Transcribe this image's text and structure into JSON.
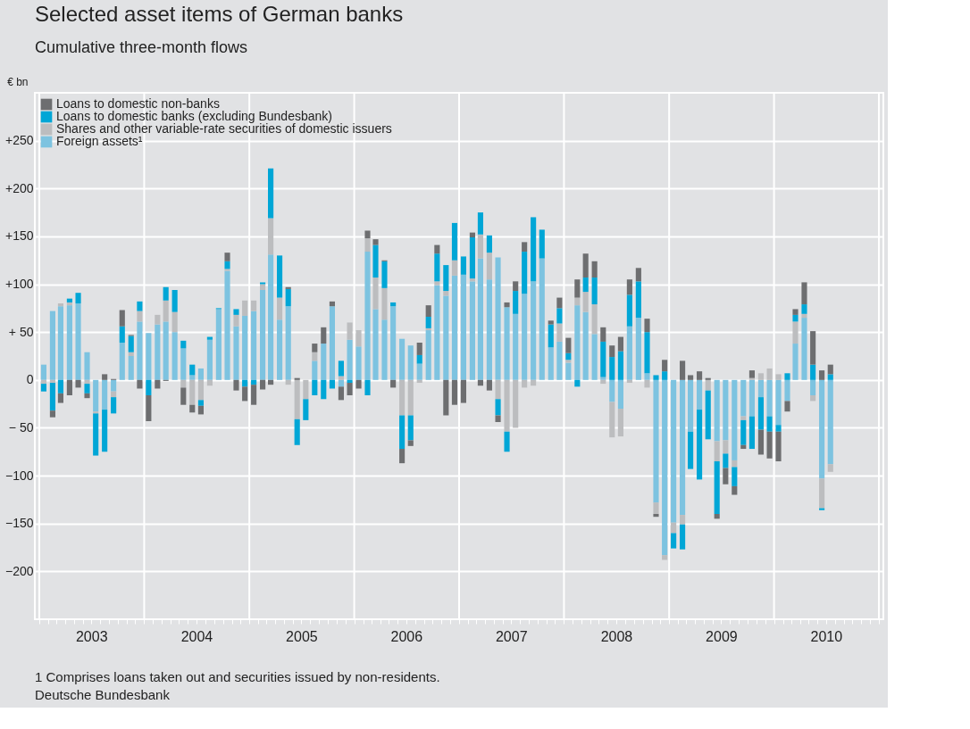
{
  "chart_data": {
    "type": "bar",
    "stacked": true,
    "title": "Selected asset items of German banks",
    "subtitle": "Cumulative three-month flows",
    "ylabel": "€ bn",
    "x": [
      "2003-01",
      "2003-02",
      "2003-03",
      "2003-04",
      "2003-05",
      "2003-06",
      "2003-07",
      "2003-08",
      "2003-09",
      "2003-10",
      "2003-11",
      "2003-12",
      "2004-01",
      "2004-02",
      "2004-03",
      "2004-04",
      "2004-05",
      "2004-06",
      "2004-07",
      "2004-08",
      "2004-09",
      "2004-10",
      "2004-11",
      "2004-12",
      "2005-01",
      "2005-02",
      "2005-03",
      "2005-04",
      "2005-05",
      "2005-06",
      "2005-07",
      "2005-08",
      "2005-09",
      "2005-10",
      "2005-11",
      "2005-12",
      "2006-01",
      "2006-02",
      "2006-03",
      "2006-04",
      "2006-05",
      "2006-06",
      "2006-07",
      "2006-08",
      "2006-09",
      "2006-10",
      "2006-11",
      "2006-12",
      "2007-01",
      "2007-02",
      "2007-03",
      "2007-04",
      "2007-05",
      "2007-06",
      "2007-07",
      "2007-08",
      "2007-09",
      "2007-10",
      "2007-11",
      "2007-12",
      "2008-01",
      "2008-02",
      "2008-03",
      "2008-04",
      "2008-05",
      "2008-06",
      "2008-07",
      "2008-08",
      "2008-09",
      "2008-10",
      "2008-11",
      "2008-12",
      "2009-01",
      "2009-02",
      "2009-03",
      "2009-04",
      "2009-05",
      "2009-06",
      "2009-07",
      "2009-08",
      "2009-09",
      "2009-10",
      "2009-11",
      "2009-12",
      "2010-01",
      "2010-02",
      "2010-03",
      "2010-04",
      "2010-05",
      "2010-06",
      "2010-07"
    ],
    "series": [
      {
        "name": "Foreign assets¹",
        "color": "#7dc3e0",
        "values": [
          16,
          72,
          77,
          78,
          80,
          29,
          -33,
          -31,
          -12,
          39,
          25,
          61,
          49,
          58,
          61,
          50,
          33,
          5,
          12,
          42,
          74,
          114,
          56,
          67,
          72,
          94,
          131,
          63,
          77,
          0,
          0,
          20,
          38,
          77,
          -7,
          42,
          35,
          134,
          74,
          63,
          77,
          43,
          36,
          17,
          52,
          99,
          88,
          109,
          110,
          103,
          127,
          105,
          128,
          76,
          69,
          90,
          103,
          127,
          34,
          40,
          18,
          78,
          71,
          48,
          3,
          -23,
          -30,
          56,
          65,
          7,
          -128,
          -183,
          -149,
          -141,
          -54,
          -31,
          0,
          -64,
          -63,
          -84,
          -38,
          -38,
          -18,
          -38,
          -47,
          -22,
          38,
          65,
          -16,
          -103,
          -88
        ]
      },
      {
        "name": "Shares and other variable-rate securities of domestic issuers",
        "color": "#bcbdbf",
        "values": [
          -4,
          -3,
          3,
          3,
          0,
          -4,
          -2,
          0,
          -6,
          null,
          4,
          11,
          0,
          10,
          22,
          21,
          -8,
          -26,
          -21,
          -6,
          null,
          2,
          12,
          16,
          11,
          6,
          38,
          23,
          -5,
          -41,
          -20,
          9,
          0,
          0,
          4,
          18,
          17,
          14,
          33,
          33,
          0,
          -37,
          -37,
          -3,
          2,
          4,
          5,
          16,
          null,
          3,
          25,
          28,
          -20,
          -54,
          -50,
          -8,
          -6,
          null,
          0,
          19,
          3,
          8,
          21,
          31,
          -4,
          -37,
          -29,
          -3,
          0,
          -8,
          -12,
          -5,
          -11,
          -10,
          0,
          0,
          -11,
          -21,
          -14,
          -7,
          -4,
          2,
          7,
          12,
          6,
          0,
          23,
          4,
          -6,
          -31,
          -8
        ]
      },
      {
        "name": "Loans to domestic banks (excluding Bundesbank)",
        "color": "#00a6d6",
        "values": [
          -8,
          -29,
          -14,
          4,
          11,
          -10,
          -44,
          -44,
          -17,
          17,
          17,
          10,
          -16,
          0,
          14,
          23,
          8,
          11,
          -6,
          3,
          1,
          8,
          6,
          -7,
          -5,
          2,
          52,
          44,
          18,
          -27,
          -22,
          -16,
          -20,
          -9,
          16,
          -3,
          0,
          -16,
          34,
          28,
          4,
          -35,
          -26,
          9,
          12,
          29,
          27,
          39,
          19,
          43,
          23,
          18,
          -17,
          -21,
          24,
          44,
          67,
          30,
          24,
          16,
          7,
          -7,
          15,
          28,
          37,
          24,
          30,
          33,
          38,
          43,
          5,
          9,
          -16,
          -26,
          -39,
          -73,
          -51,
          -55,
          -15,
          -20,
          -26,
          -34,
          -34,
          -16,
          -7,
          7,
          7,
          10,
          16,
          -2,
          6
        ]
      },
      {
        "name": "Loans to domestic non-banks",
        "color": "#6d6e70",
        "values": [
          0,
          -7,
          -10,
          -16,
          -8,
          -5,
          0,
          6,
          1,
          17,
          1,
          -9,
          -27,
          -9,
          -1,
          0,
          -18,
          -8,
          -9,
          0,
          0,
          9,
          -11,
          -15,
          -21,
          -10,
          -5,
          0,
          2,
          2,
          0,
          9,
          17,
          5,
          -14,
          -13,
          -9,
          8,
          6,
          1,
          -8,
          -15,
          -6,
          13,
          12,
          9,
          -37,
          -26,
          -24,
          5,
          -6,
          -11,
          -7,
          5,
          10,
          10,
          0,
          0,
          4,
          11,
          16,
          19,
          25,
          17,
          15,
          12,
          15,
          16,
          14,
          14,
          -3,
          12,
          0,
          20,
          5,
          9,
          2,
          -5,
          -17,
          -9,
          -4,
          8,
          -26,
          -28,
          -31,
          -11,
          6,
          23,
          35,
          10,
          10
        ]
      }
    ],
    "xlim": [
      "2003-01",
      "2011-01"
    ],
    "xticks": [
      {
        "value": "2003-01",
        "label": null
      },
      {
        "value": "2003-02",
        "label": null
      },
      {
        "value": "2003-03",
        "label": null
      },
      {
        "value": "2003-04",
        "label": null
      },
      {
        "value": "2003-05",
        "label": null
      },
      {
        "value": "2003-06",
        "label": null
      },
      {
        "value": "2003-07",
        "label": "2003"
      },
      {
        "value": "2003-08",
        "label": null
      },
      {
        "value": "2003-09",
        "label": null
      },
      {
        "value": "2003-10",
        "label": null
      },
      {
        "value": "2003-11",
        "label": null
      },
      {
        "value": "2003-12",
        "label": null
      },
      {
        "value": "2004-01",
        "label": null
      },
      {
        "value": "2004-02",
        "label": null
      },
      {
        "value": "2004-03",
        "label": null
      },
      {
        "value": "2004-04",
        "label": null
      },
      {
        "value": "2004-05",
        "label": null
      },
      {
        "value": "2004-06",
        "label": null
      },
      {
        "value": "2004-07",
        "label": "2004"
      },
      {
        "value": "2004-08",
        "label": null
      },
      {
        "value": "2004-09",
        "label": null
      },
      {
        "value": "2004-10",
        "label": null
      },
      {
        "value": "2004-11",
        "label": null
      },
      {
        "value": "2004-12",
        "label": null
      },
      {
        "value": "2005-01",
        "label": null
      },
      {
        "value": "2005-02",
        "label": null
      },
      {
        "value": "2005-03",
        "label": null
      },
      {
        "value": "2005-04",
        "label": null
      },
      {
        "value": "2005-05",
        "label": null
      },
      {
        "value": "2005-06",
        "label": null
      },
      {
        "value": "2005-07",
        "label": "2005"
      },
      {
        "value": "2005-08",
        "label": null
      },
      {
        "value": "2005-09",
        "label": null
      },
      {
        "value": "2005-10",
        "label": null
      },
      {
        "value": "2005-11",
        "label": null
      },
      {
        "value": "2005-12",
        "label": null
      },
      {
        "value": "2006-01",
        "label": null
      },
      {
        "value": "2006-02",
        "label": null
      },
      {
        "value": "2006-03",
        "label": null
      },
      {
        "value": "2006-04",
        "label": null
      },
      {
        "value": "2006-05",
        "label": null
      },
      {
        "value": "2006-06",
        "label": null
      },
      {
        "value": "2006-07",
        "label": "2006"
      },
      {
        "value": "2006-08",
        "label": null
      },
      {
        "value": "2006-09",
        "label": null
      },
      {
        "value": "2006-10",
        "label": null
      },
      {
        "value": "2006-11",
        "label": null
      },
      {
        "value": "2006-12",
        "label": null
      },
      {
        "value": "2007-01",
        "label": null
      },
      {
        "value": "2007-02",
        "label": null
      },
      {
        "value": "2007-03",
        "label": null
      },
      {
        "value": "2007-04",
        "label": null
      },
      {
        "value": "2007-05",
        "label": null
      },
      {
        "value": "2007-06",
        "label": null
      },
      {
        "value": "2007-07",
        "label": "2007"
      },
      {
        "value": "2007-08",
        "label": null
      },
      {
        "value": "2007-09",
        "label": null
      },
      {
        "value": "2007-10",
        "label": null
      },
      {
        "value": "2007-11",
        "label": null
      },
      {
        "value": "2007-12",
        "label": null
      },
      {
        "value": "2008-01",
        "label": null
      },
      {
        "value": "2008-02",
        "label": null
      },
      {
        "value": "2008-03",
        "label": null
      },
      {
        "value": "2008-04",
        "label": null
      },
      {
        "value": "2008-05",
        "label": null
      },
      {
        "value": "2008-06",
        "label": null
      },
      {
        "value": "2008-07",
        "label": "2008"
      },
      {
        "value": "2008-08",
        "label": null
      },
      {
        "value": "2008-09",
        "label": null
      },
      {
        "value": "2008-10",
        "label": null
      },
      {
        "value": "2008-11",
        "label": null
      },
      {
        "value": "2008-12",
        "label": null
      },
      {
        "value": "2009-01",
        "label": null
      },
      {
        "value": "2009-02",
        "label": null
      },
      {
        "value": "2009-03",
        "label": null
      },
      {
        "value": "2009-04",
        "label": null
      },
      {
        "value": "2009-05",
        "label": null
      },
      {
        "value": "2009-06",
        "label": null
      },
      {
        "value": "2009-07",
        "label": "2009"
      },
      {
        "value": "2009-08",
        "label": null
      },
      {
        "value": "2009-09",
        "label": null
      },
      {
        "value": "2009-10",
        "label": null
      },
      {
        "value": "2009-11",
        "label": null
      },
      {
        "value": "2009-12",
        "label": null
      },
      {
        "value": "2010-01",
        "label": null
      },
      {
        "value": "2010-02",
        "label": null
      },
      {
        "value": "2010-03",
        "label": null
      },
      {
        "value": "2010-04",
        "label": null
      },
      {
        "value": "2010-05",
        "label": null
      },
      {
        "value": "2010-06",
        "label": null
      },
      {
        "value": "2010-07",
        "label": "2010"
      },
      {
        "value": "2010-08",
        "label": null
      },
      {
        "value": "2010-09",
        "label": null
      },
      {
        "value": "2010-10",
        "label": null
      },
      {
        "value": "2010-11",
        "label": null
      },
      {
        "value": "2010-12",
        "label": null
      },
      {
        "value": "2011-01",
        "label": null
      }
    ],
    "ylim": [
      -250,
      300
    ],
    "yticks": [
      {
        "value": -200,
        "label": "−200"
      },
      {
        "value": -150,
        "label": "−150"
      },
      {
        "value": -100,
        "label": "−100"
      },
      {
        "value": -50,
        "label": "−  50"
      },
      {
        "value": 0,
        "label": "0"
      },
      {
        "value": 50,
        "label": "+  50"
      },
      {
        "value": 100,
        "label": "+100"
      },
      {
        "value": 150,
        "label": "+150"
      },
      {
        "value": 200,
        "label": "+200"
      },
      {
        "value": 250,
        "label": "+250"
      }
    ],
    "grid": true,
    "legend": "top left",
    "annotations": [
      "1 Comprises loans taken out and securities issued by non-residents.",
      "Deutsche Bundesbank"
    ]
  }
}
